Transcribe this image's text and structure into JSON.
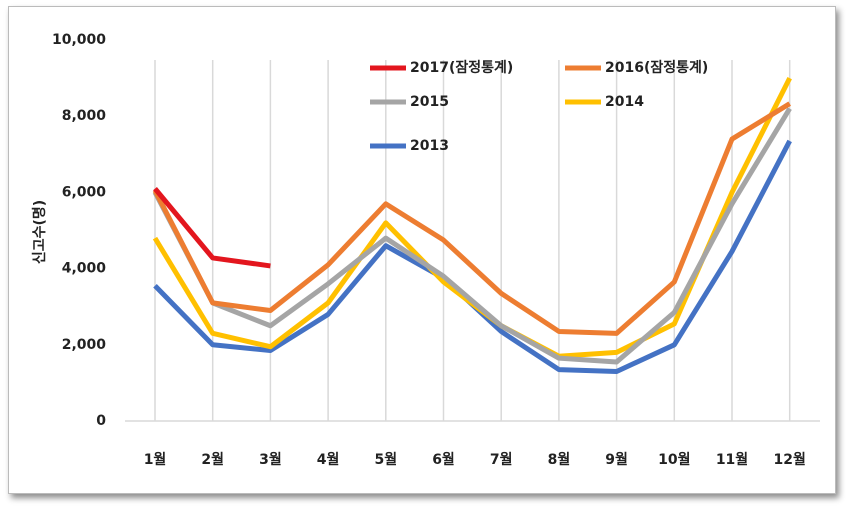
{
  "chart_data": {
    "type": "line",
    "y_label": "신고수(명)",
    "categories": [
      "1월",
      "2월",
      "3월",
      "4월",
      "5월",
      "6월",
      "7월",
      "8월",
      "9월",
      "10월",
      "11월",
      "12월"
    ],
    "series": [
      {
        "name": "2017(잠정통계)",
        "color": "#e3161e",
        "values": [
          6100,
          4280,
          4070,
          null,
          null,
          null,
          null,
          null,
          null,
          null,
          null,
          null
        ]
      },
      {
        "name": "2016(잠정통계)",
        "color": "#ed7d31",
        "values": [
          6050,
          3100,
          2900,
          4100,
          5700,
          4750,
          3350,
          2350,
          2300,
          3650,
          7400,
          8330
        ]
      },
      {
        "name": "2015",
        "color": "#a5a5a5",
        "values": [
          6000,
          3100,
          2500,
          3600,
          4800,
          3800,
          2500,
          1650,
          1550,
          2850,
          5700,
          8200
        ]
      },
      {
        "name": "2014",
        "color": "#ffc000",
        "values": [
          4800,
          2300,
          1950,
          3100,
          5200,
          3650,
          2500,
          1700,
          1800,
          2550,
          6000,
          9000
        ]
      },
      {
        "name": "2013",
        "color": "#4472c4",
        "values": [
          3550,
          2000,
          1850,
          2800,
          4600,
          3750,
          2350,
          1350,
          1300,
          2000,
          4450,
          7350
        ]
      }
    ],
    "ylim": [
      0,
      10000
    ],
    "yticks": [
      0,
      {
        "value": 2000,
        "label": "2,000"
      },
      {
        "value": 4000,
        "label": "4,000"
      },
      {
        "value": 6000,
        "label": "6,000"
      },
      {
        "value": 8000,
        "label": "8,000"
      },
      {
        "value": 10000,
        "label": "10,000"
      }
    ],
    "grid": true
  }
}
